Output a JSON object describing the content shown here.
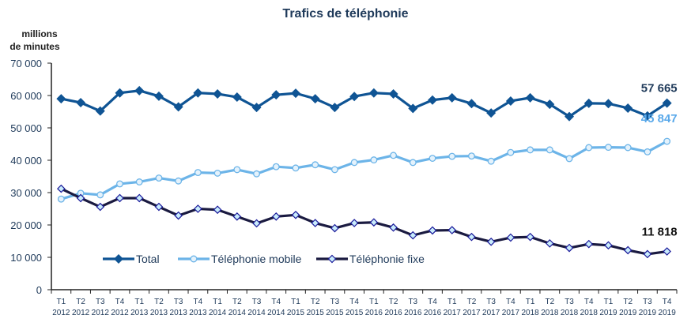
{
  "chart_data": {
    "type": "line",
    "title": "Trafics de téléphonie",
    "ylabel": [
      "millions",
      "de minutes"
    ],
    "ylim": [
      0,
      70000
    ],
    "yticks": [
      "0",
      "10 000",
      "20 000",
      "30 000",
      "40 000",
      "50 000",
      "60 000",
      "70 000"
    ],
    "ytick_values": [
      0,
      10000,
      20000,
      30000,
      40000,
      50000,
      60000,
      70000
    ],
    "x": [
      [
        "T1",
        "2012"
      ],
      [
        "T2",
        "2012"
      ],
      [
        "T3",
        "2012"
      ],
      [
        "T4",
        "2012"
      ],
      [
        "T1",
        "2013"
      ],
      [
        "T2",
        "2013"
      ],
      [
        "T3",
        "2013"
      ],
      [
        "T4",
        "2013"
      ],
      [
        "T1",
        "2014"
      ],
      [
        "T2",
        "2014"
      ],
      [
        "T3",
        "2014"
      ],
      [
        "T4",
        "2014"
      ],
      [
        "T1",
        "2015"
      ],
      [
        "T2",
        "2015"
      ],
      [
        "T3",
        "2015"
      ],
      [
        "T4",
        "2015"
      ],
      [
        "T1",
        "2016"
      ],
      [
        "T2",
        "2016"
      ],
      [
        "T3",
        "2016"
      ],
      [
        "T4",
        "2016"
      ],
      [
        "T1",
        "2017"
      ],
      [
        "T2",
        "2017"
      ],
      [
        "T3",
        "2017"
      ],
      [
        "T4",
        "2017"
      ],
      [
        "T1",
        "2018"
      ],
      [
        "T2",
        "2018"
      ],
      [
        "T3",
        "2018"
      ],
      [
        "T4",
        "2018"
      ],
      [
        "T1",
        "2019"
      ],
      [
        "T2",
        "2019"
      ],
      [
        "T3",
        "2019"
      ],
      [
        "T4",
        "2019"
      ]
    ],
    "legend_position": "bottom-inside",
    "series": [
      {
        "name": "Total",
        "color": "#0f5494",
        "marker": "diamond-filled",
        "end_label": "57 665",
        "values": [
          59000,
          57800,
          55200,
          60800,
          61500,
          59800,
          56500,
          60800,
          60500,
          59500,
          56300,
          60200,
          60700,
          59000,
          56300,
          59700,
          60800,
          60500,
          56000,
          58600,
          59300,
          57500,
          54600,
          58300,
          59300,
          57300,
          53500,
          57600,
          57500,
          56100,
          53700,
          57665
        ]
      },
      {
        "name": "Téléphonie mobile",
        "color": "#6cb4e8",
        "marker": "circle-open",
        "end_label": "45 847",
        "values": [
          28000,
          29800,
          29300,
          32700,
          33300,
          34500,
          33600,
          36200,
          36000,
          37100,
          35800,
          38000,
          37600,
          38600,
          37100,
          39300,
          40100,
          41500,
          39300,
          40600,
          41200,
          41300,
          39700,
          42400,
          43200,
          43200,
          40500,
          43900,
          44000,
          43900,
          42600,
          45847
        ]
      },
      {
        "name": "Téléphonie fixe",
        "color": "#1a1a40",
        "marker": "diamond-open",
        "end_label": "11 818",
        "values": [
          31200,
          28300,
          25600,
          28300,
          28300,
          25600,
          22900,
          25000,
          24700,
          22600,
          20500,
          22600,
          23100,
          20600,
          19000,
          20600,
          20800,
          19200,
          16800,
          18300,
          18400,
          16300,
          14800,
          16100,
          16300,
          14300,
          12900,
          14100,
          13700,
          12200,
          11000,
          11818
        ]
      }
    ]
  }
}
